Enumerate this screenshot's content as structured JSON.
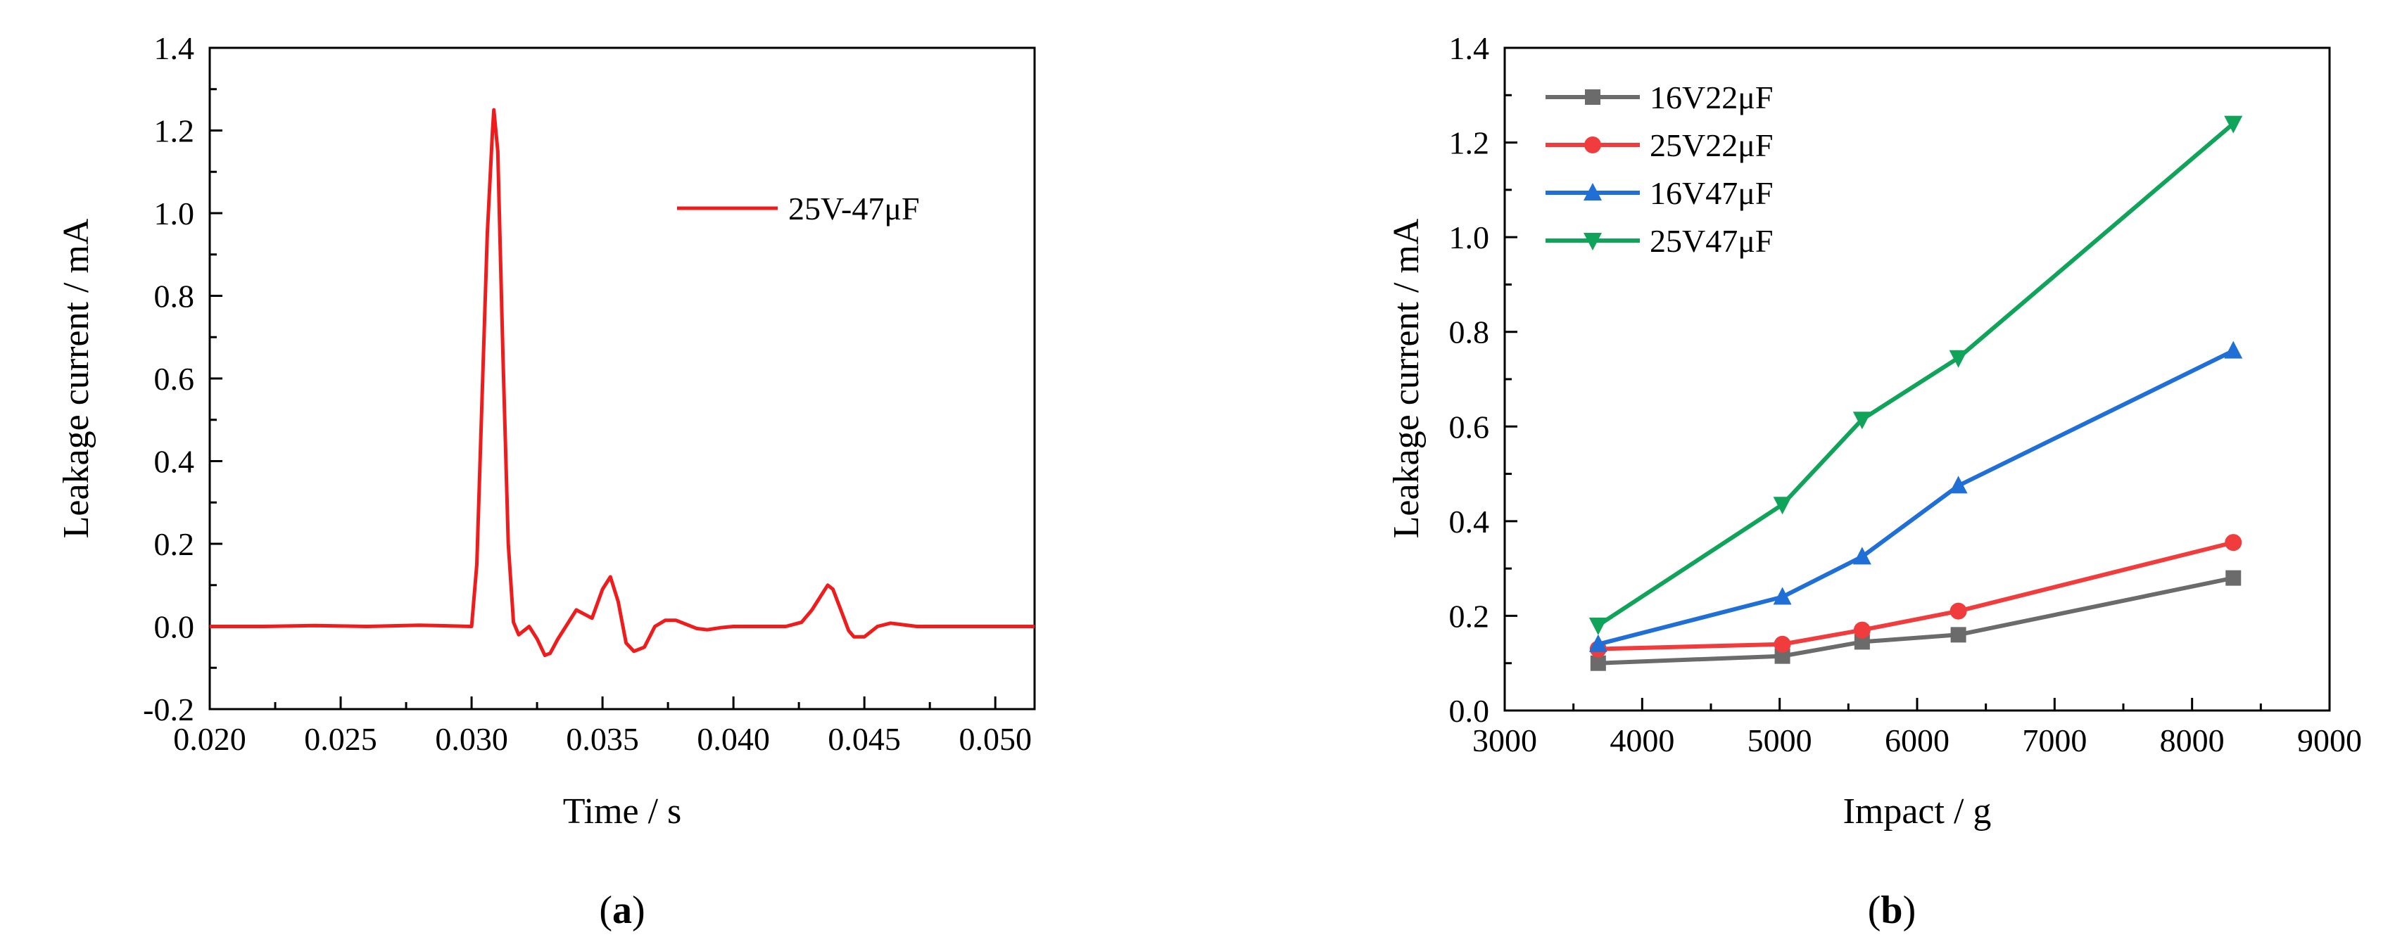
{
  "chart_data": [
    {
      "panel": "a",
      "panel_label": "a",
      "type": "line",
      "title": "",
      "xlabel": "Time / s",
      "ylabel": "Leakage current / mA",
      "xlim": [
        0.02,
        0.0515
      ],
      "ylim": [
        -0.2,
        1.4
      ],
      "x_ticks": [
        0.02,
        0.025,
        0.03,
        0.035,
        0.04,
        0.045,
        0.05
      ],
      "x_tick_labels": [
        "0.020",
        "0.025",
        "0.030",
        "0.035",
        "0.040",
        "0.045",
        "0.050"
      ],
      "y_ticks": [
        -0.2,
        0.0,
        0.2,
        0.4,
        0.6,
        0.8,
        1.0,
        1.2,
        1.4
      ],
      "y_tick_labels": [
        "-0.2",
        "0.0",
        "0.2",
        "0.4",
        "0.6",
        "0.8",
        "1.0",
        "1.2",
        "1.4"
      ],
      "legend_position": "top-right",
      "grid": false,
      "series": [
        {
          "name": "25V-47μF",
          "color": "#ee1c1c",
          "marker": "none",
          "x": [
            0.02,
            0.022,
            0.024,
            0.026,
            0.028,
            0.03,
            0.0302,
            0.0304,
            0.0306,
            0.0308,
            0.03085,
            0.031,
            0.0312,
            0.0314,
            0.0316,
            0.0318,
            0.032,
            0.0322,
            0.0325,
            0.0328,
            0.033,
            0.0333,
            0.0336,
            0.034,
            0.0343,
            0.0346,
            0.035,
            0.0353,
            0.0356,
            0.0359,
            0.0362,
            0.0366,
            0.037,
            0.0374,
            0.0378,
            0.0382,
            0.0386,
            0.039,
            0.0395,
            0.04,
            0.041,
            0.042,
            0.0426,
            0.043,
            0.0434,
            0.0436,
            0.0438,
            0.0441,
            0.0444,
            0.0446,
            0.045,
            0.0455,
            0.046,
            0.047,
            0.048,
            0.049,
            0.05,
            0.0515
          ],
          "y": [
            0.0,
            0.0,
            0.002,
            0.0,
            0.003,
            0.0,
            0.15,
            0.55,
            0.95,
            1.2,
            1.25,
            1.15,
            0.65,
            0.2,
            0.01,
            -0.02,
            -0.01,
            0.0,
            -0.03,
            -0.07,
            -0.065,
            -0.03,
            0.0,
            0.04,
            0.03,
            0.02,
            0.09,
            0.12,
            0.06,
            -0.04,
            -0.06,
            -0.05,
            0.0,
            0.015,
            0.015,
            0.005,
            -0.005,
            -0.008,
            -0.003,
            0.0,
            0.0,
            0.0,
            0.01,
            0.04,
            0.08,
            0.1,
            0.09,
            0.04,
            -0.01,
            -0.025,
            -0.025,
            0.0,
            0.008,
            0.0,
            0.0,
            0.0,
            0.0,
            0.0
          ]
        }
      ]
    },
    {
      "panel": "b",
      "panel_label": "b",
      "type": "line",
      "title": "",
      "xlabel": "Impact / g",
      "ylabel": "Leakage current / mA",
      "xlim": [
        3000,
        9000
      ],
      "ylim": [
        0,
        1.4
      ],
      "x_ticks": [
        3000,
        4000,
        5000,
        6000,
        7000,
        8000,
        9000
      ],
      "x_tick_labels": [
        "3000",
        "4000",
        "5000",
        "6000",
        "7000",
        "8000",
        "9000"
      ],
      "y_ticks": [
        0.0,
        0.2,
        0.4,
        0.6,
        0.8,
        1.0,
        1.2,
        1.4
      ],
      "y_tick_labels": [
        "0.0",
        "0.2",
        "0.4",
        "0.6",
        "0.8",
        "1.0",
        "1.2",
        "1.4"
      ],
      "legend_position": "top-left",
      "grid": false,
      "x": [
        3680,
        5020,
        5600,
        6300,
        8300
      ],
      "series": [
        {
          "name": "16V22μF",
          "color": "#6b6b6b",
          "marker": "square",
          "values": [
            0.1,
            0.115,
            0.145,
            0.16,
            0.28
          ]
        },
        {
          "name": "25V22μF",
          "color": "#f03c3c",
          "marker": "circle",
          "values": [
            0.13,
            0.14,
            0.17,
            0.21,
            0.355
          ]
        },
        {
          "name": "16V47μF",
          "color": "#1f6fd6",
          "marker": "triangle-up",
          "values": [
            0.14,
            0.24,
            0.325,
            0.475,
            0.76
          ]
        },
        {
          "name": "25V47μF",
          "color": "#10a35a",
          "marker": "triangle-down",
          "values": [
            0.18,
            0.435,
            0.615,
            0.745,
            1.24
          ]
        }
      ]
    }
  ]
}
